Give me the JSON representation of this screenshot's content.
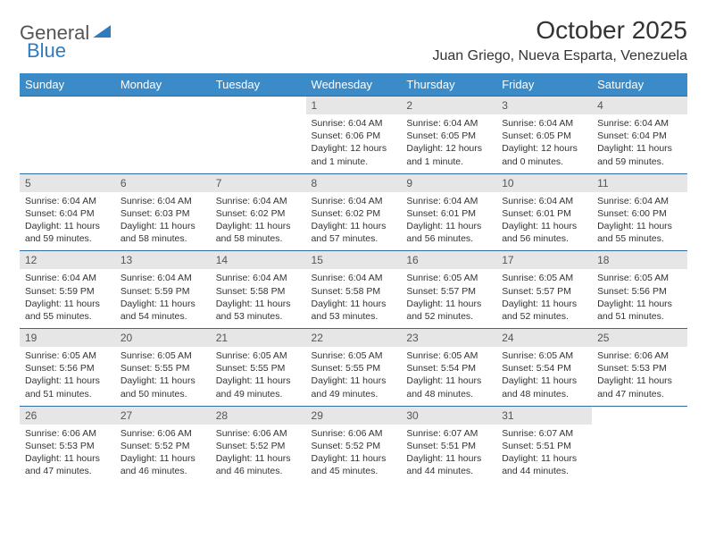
{
  "logo": {
    "text1": "General",
    "text2": "Blue"
  },
  "title": "October 2025",
  "location": "Juan Griego, Nueva Esparta, Venezuela",
  "colors": {
    "header_bg": "#3b8bc9",
    "header_text": "#ffffff",
    "daynum_bg": "#e6e6e6",
    "row_border": "#2f6aa0",
    "page_bg": "#ffffff",
    "body_text": "#333333",
    "logo_gray": "#555555",
    "logo_blue": "#2f7bbf"
  },
  "weekdays": [
    "Sunday",
    "Monday",
    "Tuesday",
    "Wednesday",
    "Thursday",
    "Friday",
    "Saturday"
  ],
  "weeks": [
    [
      {
        "n": "",
        "sr": "",
        "ss": "",
        "dl": ""
      },
      {
        "n": "",
        "sr": "",
        "ss": "",
        "dl": ""
      },
      {
        "n": "",
        "sr": "",
        "ss": "",
        "dl": ""
      },
      {
        "n": "1",
        "sr": "6:04 AM",
        "ss": "6:06 PM",
        "dl": "12 hours and 1 minute."
      },
      {
        "n": "2",
        "sr": "6:04 AM",
        "ss": "6:05 PM",
        "dl": "12 hours and 1 minute."
      },
      {
        "n": "3",
        "sr": "6:04 AM",
        "ss": "6:05 PM",
        "dl": "12 hours and 0 minutes."
      },
      {
        "n": "4",
        "sr": "6:04 AM",
        "ss": "6:04 PM",
        "dl": "11 hours and 59 minutes."
      }
    ],
    [
      {
        "n": "5",
        "sr": "6:04 AM",
        "ss": "6:04 PM",
        "dl": "11 hours and 59 minutes."
      },
      {
        "n": "6",
        "sr": "6:04 AM",
        "ss": "6:03 PM",
        "dl": "11 hours and 58 minutes."
      },
      {
        "n": "7",
        "sr": "6:04 AM",
        "ss": "6:02 PM",
        "dl": "11 hours and 58 minutes."
      },
      {
        "n": "8",
        "sr": "6:04 AM",
        "ss": "6:02 PM",
        "dl": "11 hours and 57 minutes."
      },
      {
        "n": "9",
        "sr": "6:04 AM",
        "ss": "6:01 PM",
        "dl": "11 hours and 56 minutes."
      },
      {
        "n": "10",
        "sr": "6:04 AM",
        "ss": "6:01 PM",
        "dl": "11 hours and 56 minutes."
      },
      {
        "n": "11",
        "sr": "6:04 AM",
        "ss": "6:00 PM",
        "dl": "11 hours and 55 minutes."
      }
    ],
    [
      {
        "n": "12",
        "sr": "6:04 AM",
        "ss": "5:59 PM",
        "dl": "11 hours and 55 minutes."
      },
      {
        "n": "13",
        "sr": "6:04 AM",
        "ss": "5:59 PM",
        "dl": "11 hours and 54 minutes."
      },
      {
        "n": "14",
        "sr": "6:04 AM",
        "ss": "5:58 PM",
        "dl": "11 hours and 53 minutes."
      },
      {
        "n": "15",
        "sr": "6:04 AM",
        "ss": "5:58 PM",
        "dl": "11 hours and 53 minutes."
      },
      {
        "n": "16",
        "sr": "6:05 AM",
        "ss": "5:57 PM",
        "dl": "11 hours and 52 minutes."
      },
      {
        "n": "17",
        "sr": "6:05 AM",
        "ss": "5:57 PM",
        "dl": "11 hours and 52 minutes."
      },
      {
        "n": "18",
        "sr": "6:05 AM",
        "ss": "5:56 PM",
        "dl": "11 hours and 51 minutes."
      }
    ],
    [
      {
        "n": "19",
        "sr": "6:05 AM",
        "ss": "5:56 PM",
        "dl": "11 hours and 51 minutes."
      },
      {
        "n": "20",
        "sr": "6:05 AM",
        "ss": "5:55 PM",
        "dl": "11 hours and 50 minutes."
      },
      {
        "n": "21",
        "sr": "6:05 AM",
        "ss": "5:55 PM",
        "dl": "11 hours and 49 minutes."
      },
      {
        "n": "22",
        "sr": "6:05 AM",
        "ss": "5:55 PM",
        "dl": "11 hours and 49 minutes."
      },
      {
        "n": "23",
        "sr": "6:05 AM",
        "ss": "5:54 PM",
        "dl": "11 hours and 48 minutes."
      },
      {
        "n": "24",
        "sr": "6:05 AM",
        "ss": "5:54 PM",
        "dl": "11 hours and 48 minutes."
      },
      {
        "n": "25",
        "sr": "6:06 AM",
        "ss": "5:53 PM",
        "dl": "11 hours and 47 minutes."
      }
    ],
    [
      {
        "n": "26",
        "sr": "6:06 AM",
        "ss": "5:53 PM",
        "dl": "11 hours and 47 minutes."
      },
      {
        "n": "27",
        "sr": "6:06 AM",
        "ss": "5:52 PM",
        "dl": "11 hours and 46 minutes."
      },
      {
        "n": "28",
        "sr": "6:06 AM",
        "ss": "5:52 PM",
        "dl": "11 hours and 46 minutes."
      },
      {
        "n": "29",
        "sr": "6:06 AM",
        "ss": "5:52 PM",
        "dl": "11 hours and 45 minutes."
      },
      {
        "n": "30",
        "sr": "6:07 AM",
        "ss": "5:51 PM",
        "dl": "11 hours and 44 minutes."
      },
      {
        "n": "31",
        "sr": "6:07 AM",
        "ss": "5:51 PM",
        "dl": "11 hours and 44 minutes."
      },
      {
        "n": "",
        "sr": "",
        "ss": "",
        "dl": ""
      }
    ]
  ],
  "labels": {
    "sunrise": "Sunrise:",
    "sunset": "Sunset:",
    "daylight": "Daylight:"
  }
}
